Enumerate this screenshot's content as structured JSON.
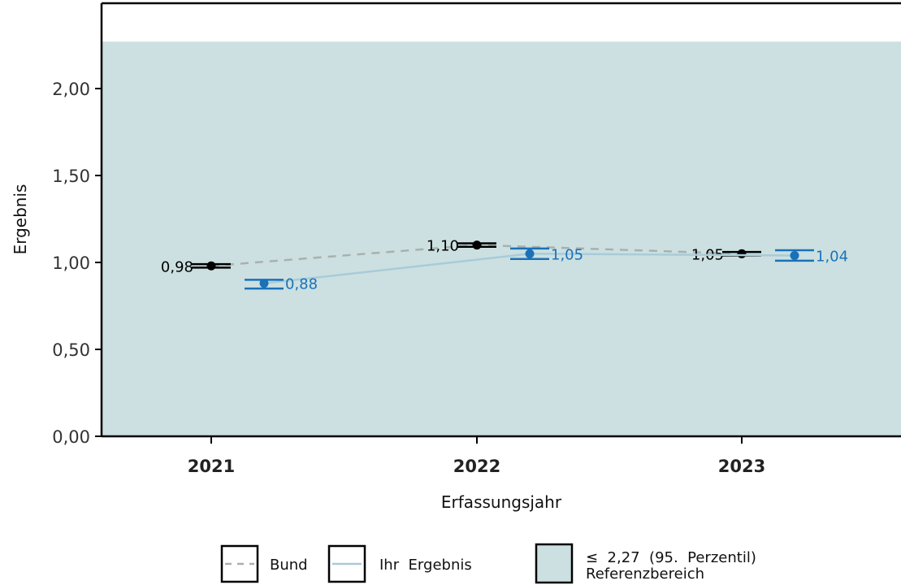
{
  "chart_data": {
    "type": "line",
    "xlabel": "Erfassungsjahr",
    "ylabel": "Ergebnis",
    "categories": [
      "2021",
      "2022",
      "2023"
    ],
    "ylim": [
      0,
      2.3
    ],
    "yticks": [
      {
        "value": 0,
        "label": "0,00"
      },
      {
        "value": 0.5,
        "label": "0,50"
      },
      {
        "value": 1.0,
        "label": "1,00"
      },
      {
        "value": 1.5,
        "label": "1,50"
      },
      {
        "value": 2.0,
        "label": "2,00"
      }
    ],
    "reference_band": {
      "from": 0,
      "to": 2.27,
      "color": "#cce0e1"
    },
    "series": [
      {
        "name": "Bund",
        "color": "#000000",
        "line_color": "#a9b1ad",
        "line_style": "dashed",
        "values": [
          0.98,
          1.1,
          1.05
        ],
        "ci_low": [
          0.97,
          1.09,
          1.04
        ],
        "ci_high": [
          0.99,
          1.11,
          1.06
        ],
        "labels": [
          "0,98",
          "1,10",
          "1,05"
        ]
      },
      {
        "name": "Ihr Ergebnis",
        "color": "#1a71b8",
        "line_color": "#a9cbd9",
        "line_style": "solid",
        "values": [
          0.88,
          1.05,
          1.04
        ],
        "ci_low": [
          0.85,
          1.02,
          1.01
        ],
        "ci_high": [
          0.9,
          1.08,
          1.07
        ],
        "labels": [
          "0,88",
          "1,05",
          "1,04"
        ]
      }
    ],
    "legend": {
      "position": "bottom",
      "items": [
        {
          "label": "Bund",
          "kind": "dashed-line",
          "color": "#a9b1ad"
        },
        {
          "label": "Ihr  Ergebnis",
          "kind": "solid-line",
          "color": "#a9cbd9",
          "text_color": "#1a71b8"
        },
        {
          "label_line1": "≤  2,27  (95.  Perzentil)",
          "label_line2": "Referenzbereich",
          "kind": "fill",
          "color": "#cce0e1"
        }
      ]
    }
  }
}
